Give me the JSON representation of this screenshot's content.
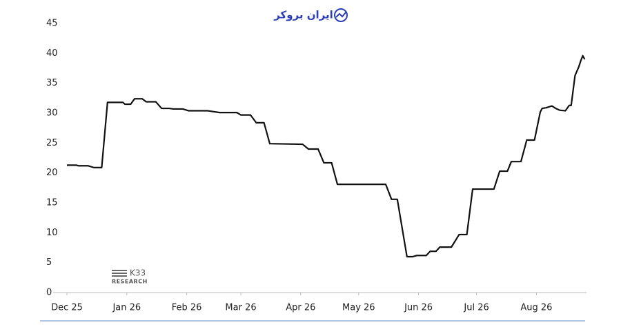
{
  "watermark": "ایران بروکر",
  "chart_data": {
    "type": "line",
    "logo": "K33",
    "logo_sub": "RESEARCH",
    "x": [
      0,
      5,
      6,
      11,
      14,
      18,
      21,
      29,
      30,
      33,
      35,
      39,
      41,
      46,
      49,
      53,
      55,
      60,
      63,
      73,
      79,
      88,
      90,
      95,
      98,
      102,
      105,
      122,
      125,
      130,
      133,
      137,
      140,
      165,
      168,
      171,
      176,
      179,
      181,
      186,
      188,
      191,
      193,
      199,
      203,
      207,
      210,
      221,
      224,
      228,
      230,
      235,
      238,
      242,
      245,
      246,
      248,
      251,
      253,
      255,
      258,
      260,
      261,
      263,
      265,
      266,
      267,
      268
    ],
    "series": [
      {
        "color": "#111111",
        "values": [
          21.3,
          21.3,
          21.2,
          21.2,
          20.9,
          20.9,
          31.8,
          31.8,
          31.5,
          31.5,
          32.4,
          32.4,
          31.9,
          31.9,
          30.8,
          30.8,
          30.7,
          30.7,
          30.4,
          30.4,
          30.1,
          30.1,
          29.7,
          29.7,
          28.4,
          28.4,
          24.9,
          24.8,
          24.0,
          24.0,
          21.7,
          21.7,
          18.1,
          18.1,
          15.6,
          15.6,
          6.0,
          6.0,
          6.2,
          6.2,
          6.9,
          6.9,
          7.6,
          7.6,
          9.7,
          9.7,
          17.3,
          17.3,
          20.3,
          20.3,
          21.9,
          21.9,
          25.5,
          25.5,
          30.2,
          30.8,
          30.9,
          31.2,
          30.8,
          30.5,
          30.4,
          31.3,
          31.3,
          36.3,
          37.8,
          38.8,
          39.6,
          39.0
        ]
      }
    ],
    "xlim": [
      0,
      270
    ],
    "xticks": [
      {
        "value": 0,
        "label": "Dec 25"
      },
      {
        "value": 31,
        "label": "Jan 26"
      },
      {
        "value": 62,
        "label": "Feb 26"
      },
      {
        "value": 90,
        "label": "Mar 26"
      },
      {
        "value": 121,
        "label": "Apr 26"
      },
      {
        "value": 151,
        "label": "May 26"
      },
      {
        "value": 182,
        "label": "Jun 26"
      },
      {
        "value": 212,
        "label": "Jul 26"
      },
      {
        "value": 243,
        "label": "Aug 26"
      }
    ],
    "ylim": [
      0,
      45
    ],
    "yticks": [
      0,
      5,
      10,
      15,
      20,
      25,
      30,
      35,
      40,
      45
    ],
    "grid": false
  }
}
